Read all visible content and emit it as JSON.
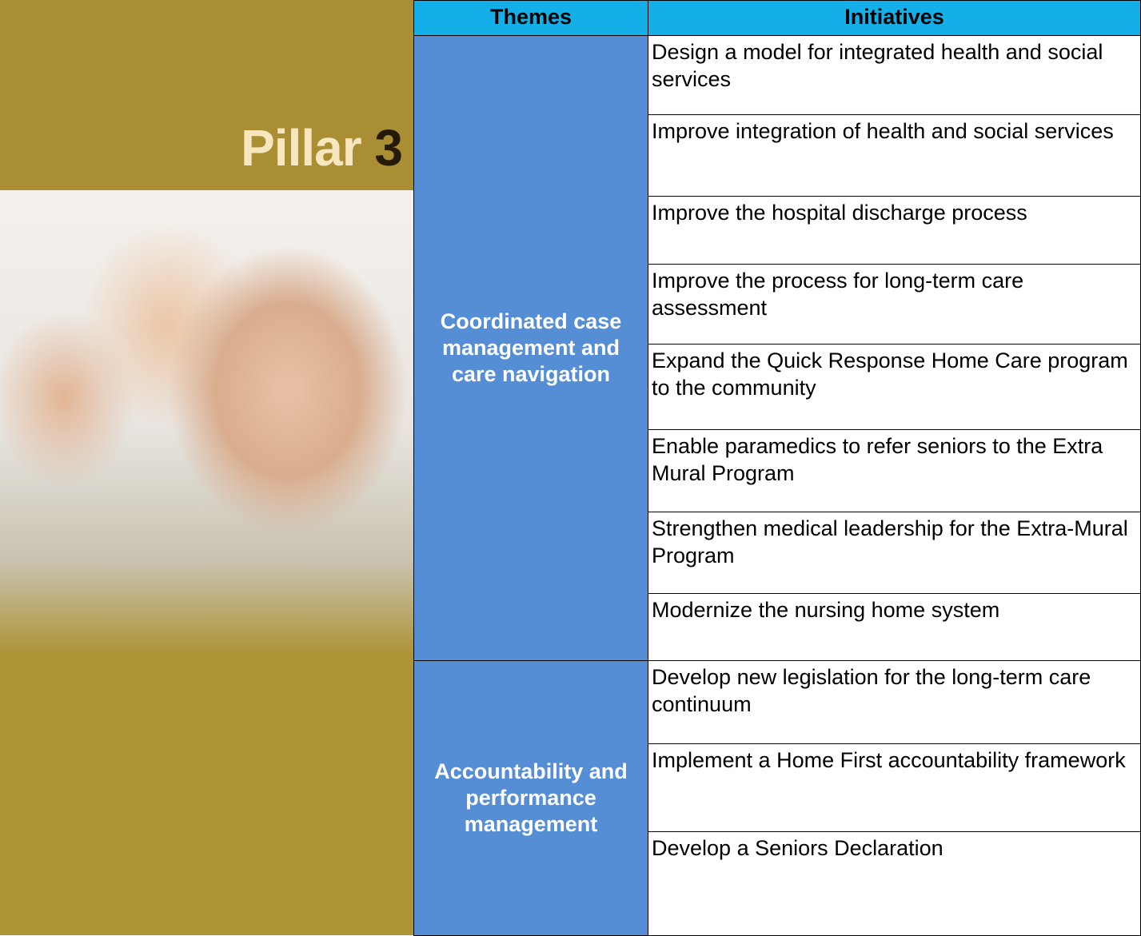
{
  "panel": {
    "title_word": "Pillar",
    "title_number": "3"
  },
  "table": {
    "columns": [
      "Themes",
      "Initiatives"
    ],
    "themes": [
      {
        "name": "Coordinated case management and care navigation",
        "initiatives": [
          "Design a model for integrated health and social services",
          "Improve integration of health and social services",
          "Improve the hospital discharge process",
          "Improve the process for long-term care assessment",
          "Expand the Quick Response Home Care program to the community",
          "Enable paramedics to refer seniors to the Extra Mural Program",
          "Strengthen medical leadership for the Extra-Mural Program",
          "Modernize the nursing home system"
        ]
      },
      {
        "name": "Accountability and performance management",
        "initiatives": [
          "Develop new legislation for the long-term care continuum",
          "Implement a Home First accountability framework",
          "Develop a Seniors Declaration"
        ]
      }
    ]
  }
}
